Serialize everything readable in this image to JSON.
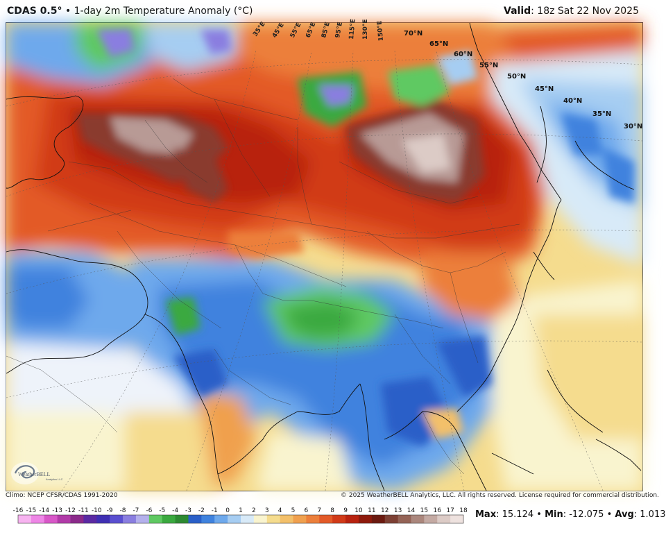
{
  "header": {
    "model": "CDAS 0.5°",
    "separator": "•",
    "product": "1-day 2m Temperature Anomaly (°C)",
    "valid_label": "Valid",
    "valid_value": ": 18z Sat 22 Nov 2025"
  },
  "footer": {
    "climo": "Climo: NCEP CFSR/CDAS 1991-2020",
    "copyright": "© 2025 WeatherBELL Analytics, LLC. All rights reserved. License required for commercial distribution."
  },
  "stats": {
    "max_label": "Max",
    "max_value": ": 15.124",
    "min_label": "Min",
    "min_value": ": -12.075",
    "avg_label": "Avg",
    "avg_value": ": 1.013",
    "sep": "•"
  },
  "logo": {
    "text": "WeatherBELL",
    "tagline": "Analytics LLC"
  },
  "legend": {
    "ticks": [
      "-16",
      "-15",
      "-14",
      "-13",
      "-12",
      "-11",
      "-10",
      "-9",
      "-8",
      "-7",
      "-6",
      "-5",
      "-4",
      "-3",
      "-2",
      "-1",
      "0",
      "1",
      "2",
      "3",
      "4",
      "5",
      "6",
      "7",
      "8",
      "9",
      "10",
      "11",
      "12",
      "13",
      "14",
      "15",
      "16",
      "17",
      "18"
    ],
    "colors": [
      "#f7b3f0",
      "#ee86e6",
      "#d857c8",
      "#b13aa8",
      "#8b2a8a",
      "#5b2aa3",
      "#3f2fb3",
      "#5a4fd0",
      "#8a7ee0",
      "#b4b0ec",
      "#5fc962",
      "#3aa93f",
      "#2d8a32",
      "#2a5fc8",
      "#3f82de",
      "#6ea9ec",
      "#a6cdf2",
      "#d8eaf8",
      "#f9f4cf",
      "#f5dc8e",
      "#f3c06a",
      "#f0a04e",
      "#ec7f3b",
      "#e35a28",
      "#d13a18",
      "#b8220f",
      "#8e1a0c",
      "#6b1a10",
      "#7d4034",
      "#946356",
      "#ab877d",
      "#c4aaa3",
      "#dccbc6",
      "#eee2df"
    ]
  },
  "map": {
    "lat_labels": [
      "70°N",
      "65°N",
      "60°N",
      "55°N",
      "50°N",
      "45°N",
      "40°N",
      "35°N",
      "30°N"
    ],
    "lon_labels": [
      "35°E",
      "45°E",
      "55°E",
      "65°E",
      "85°E",
      "95°E",
      "115°E",
      "130°E",
      "150°E"
    ],
    "anomaly_colors": {
      "deep_warm": "#8a3a2e",
      "extreme_warm": "#b89a95",
      "warm": "#d13a18",
      "mild_warm": "#f0a04e",
      "slight_warm": "#f9e8b0",
      "neutral": "#eef3fa",
      "slight_cool": "#b8d3f0",
      "cool": "#3f82de",
      "cold": "#2d8a32",
      "very_cold": "#6a5fd0"
    }
  }
}
